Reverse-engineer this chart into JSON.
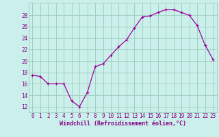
{
  "x": [
    0,
    1,
    2,
    3,
    4,
    5,
    6,
    7,
    8,
    9,
    10,
    11,
    12,
    13,
    14,
    15,
    16,
    17,
    18,
    19,
    20,
    21,
    22,
    23
  ],
  "y": [
    17.5,
    17.3,
    16.0,
    16.0,
    16.0,
    13.0,
    12.0,
    14.5,
    19.0,
    19.5,
    21.0,
    22.5,
    23.7,
    25.8,
    27.7,
    27.9,
    28.5,
    29.0,
    29.0,
    28.5,
    28.0,
    26.2,
    22.8,
    20.3
  ],
  "line_color": "#990099",
  "marker": "+",
  "bg_color": "#cbf0eb",
  "grid_color": "#99ccbb",
  "xlabel": "Windchill (Refroidissement éolien,°C)",
  "ylabel_ticks": [
    12,
    14,
    16,
    18,
    20,
    22,
    24,
    26,
    28
  ],
  "ylim": [
    11.0,
    30.2
  ],
  "xlim": [
    -0.5,
    23.5
  ],
  "tick_color": "#880088",
  "label_color": "#880088",
  "tick_fontsize": 5.5,
  "xlabel_fontsize": 6.0
}
